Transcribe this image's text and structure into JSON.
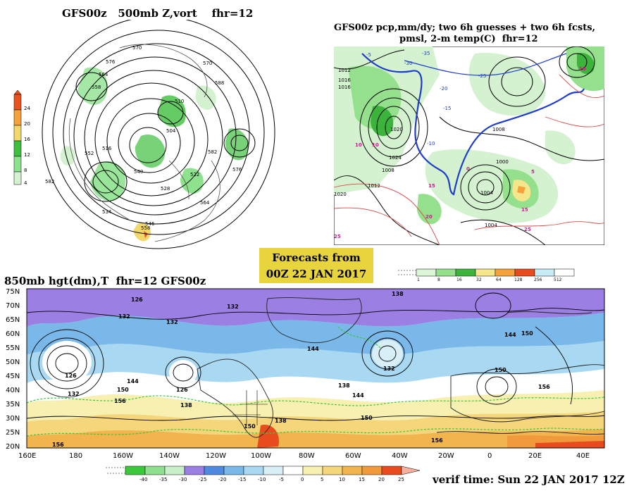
{
  "panels": {
    "top_left": {
      "title": "GFS00z   500mb Z,vort    fhr=12",
      "colorbar": [
        {
          "label": "24",
          "color": "#e8521e"
        },
        {
          "label": "20",
          "color": "#f5a23c"
        },
        {
          "label": "16",
          "color": "#f2d86a"
        },
        {
          "label": "12",
          "color": "#3fbf3f"
        },
        {
          "label": "8",
          "color": "#8ee28e"
        },
        {
          "label": "4",
          "color": "#d4f2d0"
        }
      ],
      "contour_labels": [
        "570",
        "582",
        "576",
        "564",
        "558",
        "552",
        "540",
        "534",
        "528",
        "516",
        "504",
        "510",
        "522",
        "546",
        "588",
        "576",
        "582",
        "564",
        "570",
        "558"
      ]
    },
    "top_right": {
      "title_line1": "GFS00z pcp,mm/dy; two 6h guesses + two 6h fcsts,",
      "title_line2": "pmsl, 2-m temp(C)  fhr=12",
      "colorbar": [
        {
          "label": "1",
          "color": "#dcf5d6"
        },
        {
          "label": "8",
          "color": "#94e08c"
        },
        {
          "label": "16",
          "color": "#3cb43c"
        },
        {
          "label": "32",
          "color": "#f5e68c"
        },
        {
          "label": "64",
          "color": "#f5a23c"
        },
        {
          "label": "128",
          "color": "#e84b1e"
        },
        {
          "label": "256",
          "color": "#c8ecf5"
        },
        {
          "label": "512",
          "color": "#ffffff"
        }
      ],
      "isobar_labels": [
        "1012",
        "1016",
        "1020",
        "1024",
        "1008",
        "1004",
        "1000",
        "1008",
        "1012",
        "1016",
        "1004",
        "1020"
      ],
      "temp_labels": [
        "-5",
        "-10",
        "-15",
        "-20",
        "-25",
        "-30",
        "-35",
        "0",
        "5",
        "10",
        "15",
        "20",
        "25",
        "10",
        "10",
        "15",
        "25"
      ]
    },
    "forecast_box": {
      "line1": "Forecasts from",
      "line2": "00Z 22 JAN 2017"
    },
    "bottom": {
      "title": "850mb hgt(dm),T  fhr=12 GFS00z",
      "lat_labels": [
        "75N",
        "70N",
        "65N",
        "60N",
        "55N",
        "50N",
        "45N",
        "40N",
        "35N",
        "30N",
        "25N",
        "20N"
      ],
      "lon_labels": [
        "160E",
        "180",
        "160W",
        "140W",
        "120W",
        "100W",
        "80W",
        "60W",
        "40W",
        "20W",
        "0",
        "20E",
        "40E"
      ],
      "contour_labels": [
        "126",
        "132",
        "132",
        "138",
        "132",
        "126",
        "138",
        "144",
        "150",
        "156",
        "150",
        "156",
        "144",
        "132",
        "126",
        "144",
        "138",
        "150",
        "150",
        "144",
        "156",
        "150",
        "156",
        "132",
        "138"
      ],
      "colorbar": [
        {
          "label": "-40",
          "color": "#3cc83c"
        },
        {
          "label": "-35",
          "color": "#8ee08e"
        },
        {
          "label": "-30",
          "color": "#c8f0c8"
        },
        {
          "label": "-25",
          "color": "#9b7fe3"
        },
        {
          "label": "-20",
          "color": "#4f8ae0"
        },
        {
          "label": "-15",
          "color": "#7ab8ea"
        },
        {
          "label": "-10",
          "color": "#a8d8f2"
        },
        {
          "label": "-5",
          "color": "#d8eff8"
        },
        {
          "label": "0",
          "color": "#ffffff"
        },
        {
          "label": "5",
          "color": "#f8f0b0"
        },
        {
          "label": "10",
          "color": "#f5d67a"
        },
        {
          "label": "15",
          "color": "#f2b44c"
        },
        {
          "label": "20",
          "color": "#f09a3c"
        },
        {
          "label": "25",
          "color": "#e84b1e"
        }
      ]
    },
    "verif": "verif time: Sun 22 JAN 2017 12Z"
  }
}
